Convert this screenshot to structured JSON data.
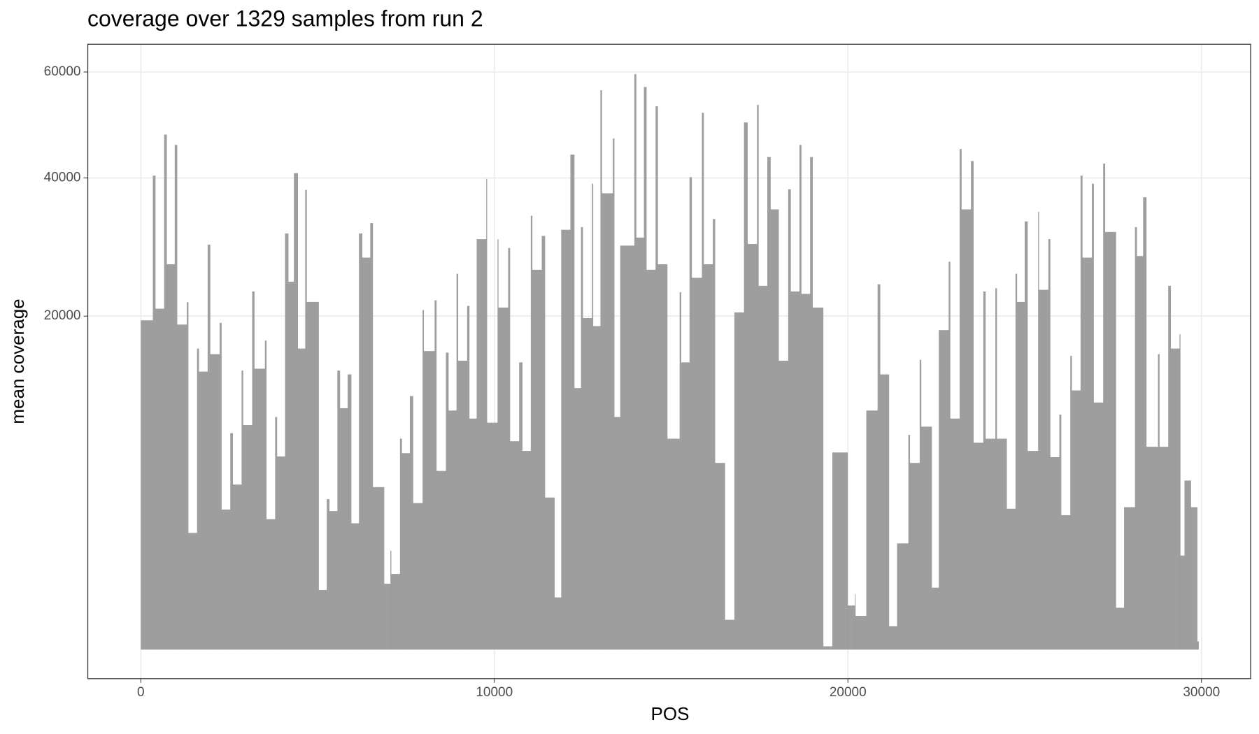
{
  "chart_data": {
    "type": "step-area",
    "title": "coverage over 1329 samples from run 2",
    "x_label": "POS",
    "y_label": "mean coverage",
    "color": "#999999",
    "grid": true,
    "yscale": "sqrt",
    "xlim": [
      -1500,
      31390
    ],
    "ylim": [
      0,
      65900
    ],
    "xticks": [
      0,
      10000,
      20000,
      30000
    ],
    "yticks": [
      20000,
      40000,
      60000
    ],
    "x": [
      0,
      340,
      410,
      660,
      730,
      960,
      1025,
      1300,
      1340,
      1590,
      1640,
      1890,
      1960,
      2230,
      2280,
      2530,
      2600,
      2850,
      2890,
      3150,
      3210,
      3510,
      3550,
      3800,
      3850,
      4080,
      4170,
      4330,
      4440,
      4650,
      4690,
      5030,
      5260,
      5330,
      5560,
      5630,
      5850,
      5950,
      6170,
      6260,
      6490,
      6560,
      6880,
      7060,
      7080,
      7330,
      7380,
      7610,
      7700,
      7970,
      8000,
      8310,
      8360,
      8630,
      8700,
      8930,
      8970,
      9230,
      9290,
      9500,
      9770,
      9790,
      10090,
      10110,
      10390,
      10440,
      10700,
      10790,
      11030,
      11070,
      11340,
      11430,
      11700,
      11890,
      12150,
      12260,
      12450,
      12500,
      12760,
      12790,
      13000,
      13040,
      13350,
      13390,
      13560,
      13960,
      14010,
      14230,
      14300,
      14560,
      14620,
      14890,
      15240,
      15280,
      15520,
      15580,
      15870,
      15920,
      16180,
      16240,
      16520,
      16790,
      17060,
      17160,
      17430,
      17470,
      17720,
      17810,
      18040,
      18310,
      18380,
      18630,
      18680,
      18930,
      19000,
      19300,
      19560,
      19990,
      20200,
      20210,
      20520,
      20840,
      20910,
      21160,
      21390,
      21710,
      21750,
      22030,
      22070,
      22370,
      22570,
      22850,
      22890,
      23160,
      23210,
      23480,
      23550,
      23830,
      23890,
      24170,
      24210,
      24490,
      24740,
      24780,
      25000,
      25080,
      25380,
      25400,
      25670,
      25720,
      25980,
      26030,
      26290,
      26330,
      26580,
      26630,
      26900,
      26950,
      27220,
      27270,
      27580,
      27810,
      28120,
      28170,
      28350,
      28440,
      28770,
      28810,
      29060,
      29130,
      29380,
      29400,
      29520,
      29700,
      29880
    ],
    "values": [
      19500,
      40400,
      20900,
      47700,
      26700,
      45800,
      19000,
      21700,
      2450,
      16300,
      13900,
      29500,
      15700,
      19200,
      3530,
      8430,
      4900,
      14000,
      9070,
      23070,
      14190,
      17170,
      3060,
      9730,
      6710,
      31140,
      24330,
      40820,
      16300,
      38000,
      21740,
      640,
      4070,
      3450,
      14000,
      10480,
      13620,
      2870,
      31140,
      27630,
      32720,
      4750,
      780,
      1760,
      1030,
      8000,
      6940,
      11560,
      3860,
      20740,
      16030,
      21940,
      5740,
      15860,
      10280,
      25400,
      15010,
      21240,
      9600,
      30300,
      39870,
      9260,
      30300,
      21040,
      29000,
      7810,
      14840,
      7100,
      33850,
      25950,
      30780,
      4160,
      490,
      31700,
      44060,
      12300,
      32100,
      19770,
      39040,
      18820,
      56260,
      37450,
      46960,
      9730,
      29350,
      59540,
      30530,
      56920,
      25950,
      53080,
      26700,
      8000,
      22960,
      14840,
      40140,
      24860,
      51820,
      26700,
      33340,
      6270,
      160,
      20450,
      49970,
      29590,
      53370,
      23800,
      43630,
      34850,
      15010,
      38110,
      23070,
      45800,
      22760,
      43630,
      21040,
      2,
      6990,
      350,
      555,
      205,
      10280,
      24000,
      13620,
      98,
      2030,
      8300,
      6270,
      15100,
      8940,
      690,
      18360,
      27060,
      9600,
      45070,
      34850,
      42920,
      7700,
      23070,
      8000,
      23480,
      8000,
      3570,
      25400,
      21740,
      32970,
      7100,
      34480,
      23280,
      30300,
      6660,
      9930,
      3250,
      15520,
      12080,
      40400,
      27630,
      39040,
      10980,
      42480,
      31370,
      315,
      3650,
      32100,
      27860,
      36800,
      7400,
      15700,
      7400,
      23800,
      16300,
      17900,
      1590,
      5140,
      3650,
      12
    ]
  }
}
